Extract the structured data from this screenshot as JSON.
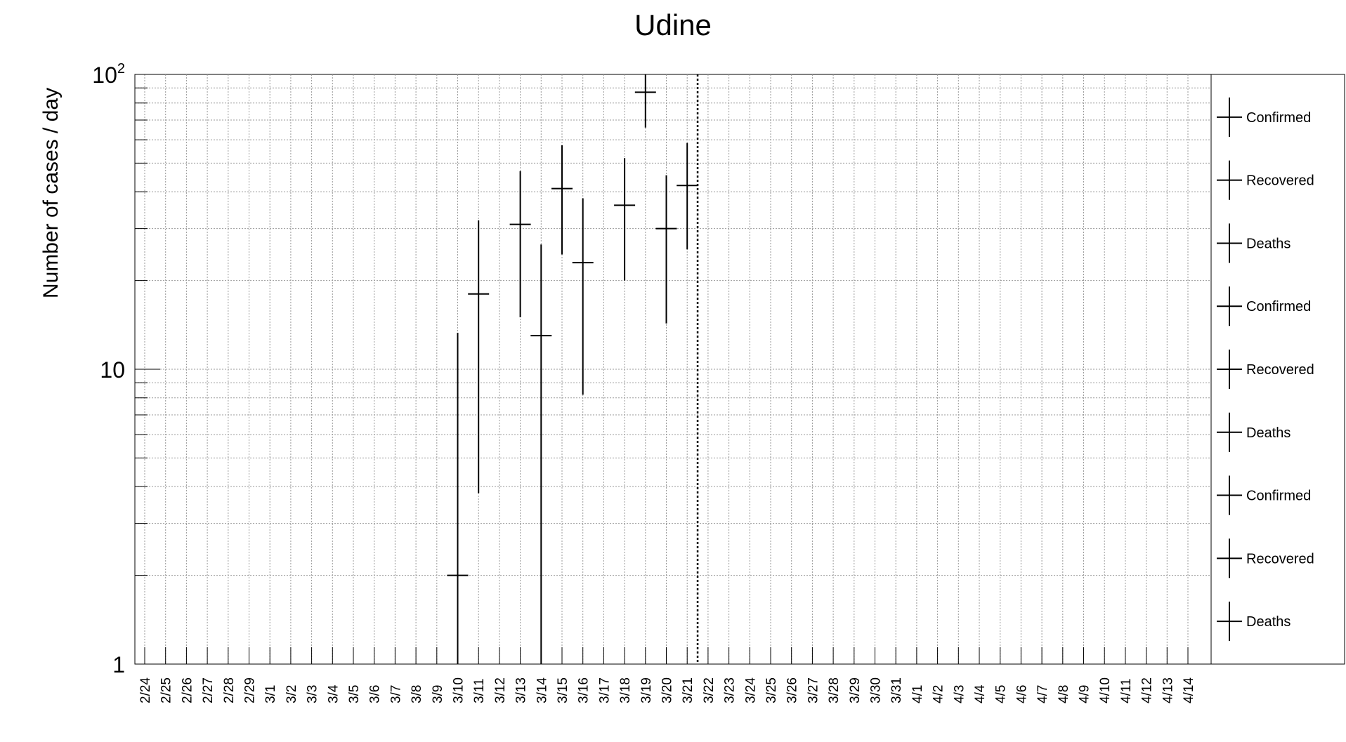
{
  "chart_data": {
    "type": "scatter",
    "title": "Udine",
    "ylabel": "Number of cases / day",
    "xlabel": "",
    "y_scale": "log",
    "ylim": [
      1,
      100
    ],
    "y_major_ticks": [
      {
        "value": 1,
        "label": "1",
        "exponent": ""
      },
      {
        "value": 10,
        "label": "10",
        "exponent": ""
      },
      {
        "value": 100,
        "label": "10",
        "exponent": "2"
      }
    ],
    "grid": true,
    "legend_position": "right",
    "categories": [
      "2/24",
      "2/25",
      "2/26",
      "2/27",
      "2/28",
      "2/29",
      "3/1",
      "3/2",
      "3/3",
      "3/4",
      "3/5",
      "3/6",
      "3/7",
      "3/8",
      "3/9",
      "3/10",
      "3/11",
      "3/12",
      "3/13",
      "3/14",
      "3/15",
      "3/16",
      "3/17",
      "3/18",
      "3/19",
      "3/20",
      "3/21",
      "3/22",
      "3/23",
      "3/24",
      "3/25",
      "3/26",
      "3/27",
      "3/28",
      "3/29",
      "3/30",
      "3/31",
      "4/1",
      "4/2",
      "4/3",
      "4/4",
      "4/5",
      "4/6",
      "4/7",
      "4/8",
      "4/9",
      "4/10",
      "4/11",
      "4/12",
      "4/13",
      "4/14"
    ],
    "reference_line_date": "3/22",
    "series": [
      {
        "name": "Confirmed",
        "points": [
          {
            "x": "3/10",
            "y": 2,
            "y_low": 1,
            "y_high": 13.3
          },
          {
            "x": "3/11",
            "y": 18,
            "y_low": 3.8,
            "y_high": 32
          },
          {
            "x": "3/13",
            "y": 31,
            "y_low": 15,
            "y_high": 47
          },
          {
            "x": "3/14",
            "y": 13,
            "y_low": 1,
            "y_high": 26.5
          },
          {
            "x": "3/15",
            "y": 41,
            "y_low": 24.5,
            "y_high": 57.5
          },
          {
            "x": "3/16",
            "y": 23,
            "y_low": 8.2,
            "y_high": 38
          },
          {
            "x": "3/18",
            "y": 36,
            "y_low": 20,
            "y_high": 52
          },
          {
            "x": "3/19",
            "y": 87,
            "y_low": 66,
            "y_high": 100
          },
          {
            "x": "3/20",
            "y": 30,
            "y_low": 14.3,
            "y_high": 45.5
          },
          {
            "x": "3/21",
            "y": 42,
            "y_low": 25.5,
            "y_high": 58.5
          }
        ]
      }
    ],
    "legend": [
      "Confirmed",
      "Recovered",
      "Deaths",
      "Confirmed",
      "Recovered",
      "Deaths",
      "Confirmed",
      "Recovered",
      "Deaths"
    ],
    "colors": {
      "marker": "#000000",
      "grid": "#9a9a9a",
      "axis": "#000000",
      "background": "#ffffff"
    }
  }
}
